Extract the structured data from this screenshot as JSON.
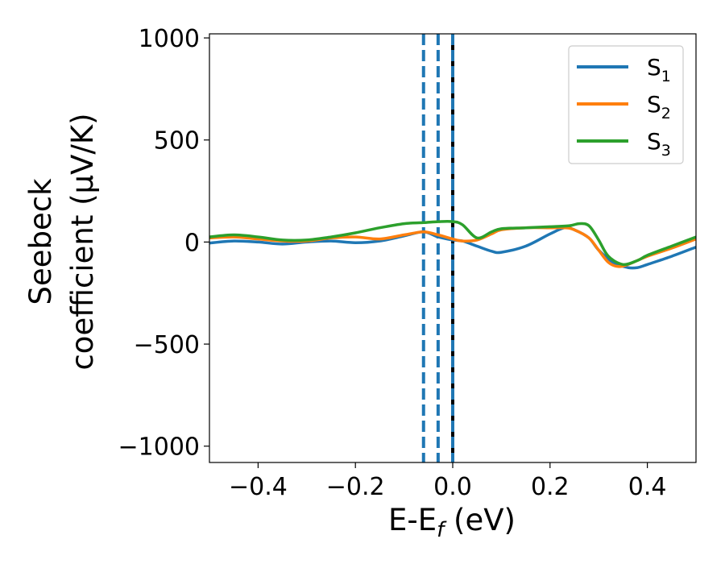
{
  "chart_data": {
    "type": "line",
    "title": "",
    "xlabel": {
      "main": "E-E",
      "sub": "f",
      "unit": " (eV)"
    },
    "ylabel": {
      "line1": "Seebeck",
      "line2": "coefficient  (μV/K)"
    },
    "xlim": [
      -0.5,
      0.5
    ],
    "ylim": [
      -1080,
      1020
    ],
    "xticks": [
      -0.4,
      -0.2,
      0.0,
      0.2,
      0.4
    ],
    "xtick_labels": [
      "−0.4",
      "−0.2",
      "0.0",
      "0.2",
      "0.4"
    ],
    "yticks": [
      -1000,
      -500,
      0,
      500,
      1000
    ],
    "ytick_labels": [
      "−1000",
      "−500",
      "0",
      "500",
      "1000"
    ],
    "grid": false,
    "legend": {
      "position": "top-right"
    },
    "vlines": [
      {
        "x": -0.06,
        "style": "dashed",
        "color": "#1f77b4"
      },
      {
        "x": -0.03,
        "style": "dashed",
        "color": "#1f77b4"
      },
      {
        "x": 0.0,
        "style": "solid",
        "color": "#000000"
      },
      {
        "x": 0.0,
        "style": "dashed",
        "color": "#1f77b4"
      }
    ],
    "series": [
      {
        "name": "S",
        "sub": "1",
        "color": "#1f77b4",
        "x": [
          -0.5,
          -0.45,
          -0.4,
          -0.35,
          -0.3,
          -0.25,
          -0.2,
          -0.15,
          -0.1,
          -0.06,
          -0.03,
          0.0,
          0.02,
          0.05,
          0.08,
          0.1,
          0.15,
          0.2,
          0.23,
          0.25,
          0.28,
          0.3,
          0.33,
          0.36,
          0.38,
          0.4,
          0.45,
          0.5
        ],
        "y": [
          -5,
          5,
          0,
          -10,
          0,
          5,
          -3,
          5,
          30,
          50,
          25,
          10,
          5,
          -20,
          -45,
          -50,
          -20,
          40,
          70,
          60,
          20,
          -40,
          -100,
          -125,
          -125,
          -110,
          -70,
          -25
        ]
      },
      {
        "name": "S",
        "sub": "2",
        "color": "#ff7f0e",
        "x": [
          -0.5,
          -0.45,
          -0.4,
          -0.35,
          -0.3,
          -0.25,
          -0.2,
          -0.15,
          -0.1,
          -0.06,
          -0.03,
          0.0,
          0.02,
          0.05,
          0.08,
          0.1,
          0.15,
          0.2,
          0.23,
          0.25,
          0.28,
          0.3,
          0.32,
          0.34,
          0.36,
          0.4,
          0.45,
          0.5
        ],
        "y": [
          20,
          25,
          15,
          5,
          5,
          20,
          25,
          15,
          35,
          50,
          35,
          15,
          5,
          10,
          40,
          60,
          70,
          70,
          70,
          60,
          20,
          -40,
          -100,
          -120,
          -110,
          -70,
          -30,
          15
        ]
      },
      {
        "name": "S",
        "sub": "3",
        "color": "#2ca02c",
        "x": [
          -0.5,
          -0.45,
          -0.4,
          -0.35,
          -0.3,
          -0.25,
          -0.2,
          -0.15,
          -0.1,
          -0.06,
          -0.03,
          0.0,
          0.02,
          0.05,
          0.08,
          0.1,
          0.15,
          0.2,
          0.24,
          0.26,
          0.28,
          0.3,
          0.32,
          0.35,
          0.38,
          0.4,
          0.45,
          0.5
        ],
        "y": [
          25,
          35,
          25,
          10,
          10,
          25,
          45,
          70,
          90,
          95,
          100,
          100,
          85,
          20,
          50,
          65,
          70,
          75,
          80,
          90,
          80,
          10,
          -70,
          -110,
          -90,
          -65,
          -20,
          25
        ]
      }
    ]
  }
}
